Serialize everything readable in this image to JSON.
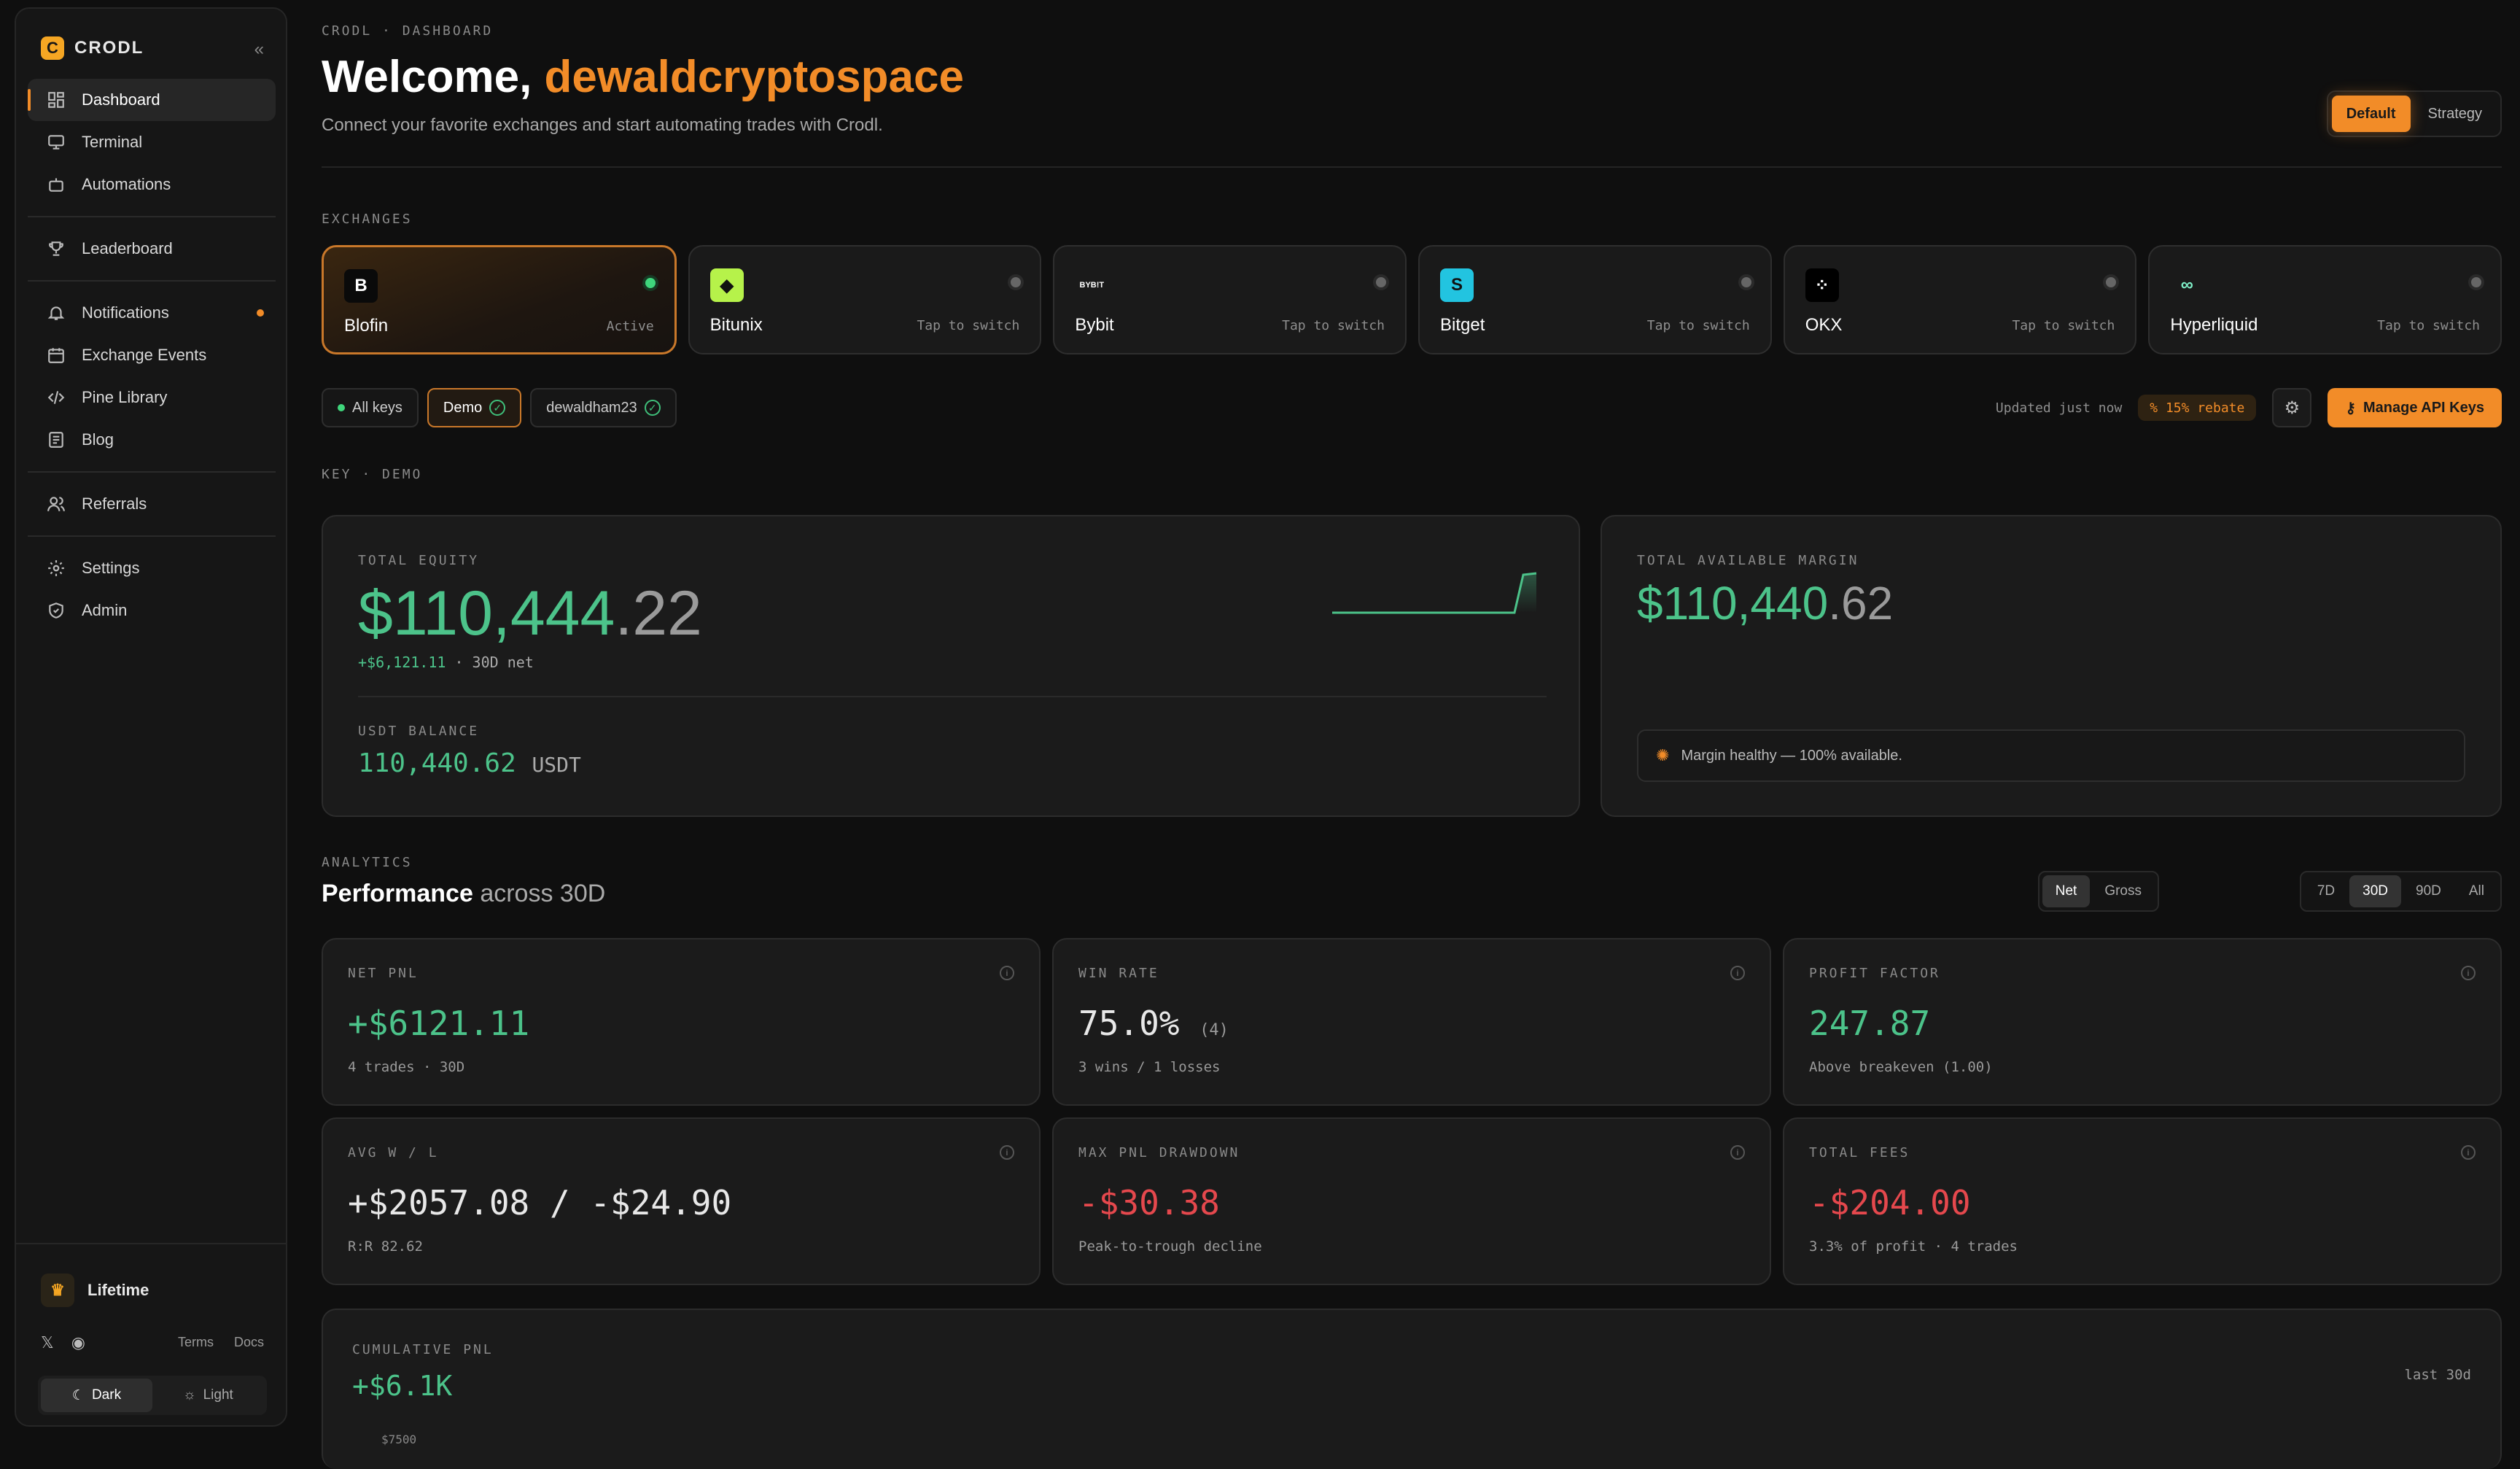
{
  "app": {
    "name": "CRODL"
  },
  "sidebar": {
    "collapse_icon": "«",
    "items": [
      {
        "label": "Dashboard",
        "icon": "grid-icon"
      },
      {
        "label": "Terminal",
        "icon": "monitor-icon"
      },
      {
        "label": "Automations",
        "icon": "robot-icon"
      },
      {
        "label": "Leaderboard",
        "icon": "trophy-icon"
      },
      {
        "label": "Notifications",
        "icon": "bell-icon"
      },
      {
        "label": "Exchange Events",
        "icon": "calendar-icon"
      },
      {
        "label": "Pine Library",
        "icon": "code-icon"
      },
      {
        "label": "Blog",
        "icon": "newspaper-icon"
      },
      {
        "label": "Referrals",
        "icon": "users-icon"
      },
      {
        "label": "Settings",
        "icon": "gear-icon"
      },
      {
        "label": "Admin",
        "icon": "shield-icon"
      }
    ],
    "plan": "Lifetime",
    "links": {
      "terms": "Terms",
      "docs": "Docs"
    },
    "theme": {
      "dark": "Dark",
      "light": "Light",
      "selected": "Dark"
    }
  },
  "header": {
    "breadcrumb": "CRODL · DASHBOARD",
    "welcome": "Welcome,",
    "username": "dewaldcryptospace",
    "subtitle": "Connect your favorite exchanges and start automating trades with Crodl.",
    "mode": {
      "default": "Default",
      "strategy": "Strategy",
      "selected": "Default"
    }
  },
  "exchanges": {
    "label": "EXCHANGES",
    "items": [
      {
        "name": "Blofin",
        "status": "Active",
        "glyph": "B",
        "color": "#0a0a0a"
      },
      {
        "name": "Bitunix",
        "status": "Tap to switch",
        "glyph": "◆",
        "color": "#b6f24a"
      },
      {
        "name": "Bybit",
        "status": "Tap to switch",
        "glyph": "BYB!T",
        "color": "#1a1a1a"
      },
      {
        "name": "Bitget",
        "status": "Tap to switch",
        "glyph": "S",
        "color": "#22c4e0"
      },
      {
        "name": "OKX",
        "status": "Tap to switch",
        "glyph": "⁘",
        "color": "#000000"
      },
      {
        "name": "Hyperliquid",
        "status": "Tap to switch",
        "glyph": "∞",
        "color": "#1a1a1a"
      }
    ]
  },
  "keys": {
    "all": "All keys",
    "demo": "Demo",
    "user_key": "dewaldham23",
    "updated": "Updated just now",
    "rebate": "% 15% rebate",
    "manage": "Manage API Keys"
  },
  "key_section": {
    "label": "KEY · DEMO"
  },
  "equity": {
    "label": "TOTAL EQUITY",
    "main": "$110,444",
    "cents": ".22",
    "delta": "+$6,121.11",
    "delta_suffix": "· 30D net",
    "usdt_label": "USDT BALANCE",
    "usdt_value": "110,440.62",
    "usdt_unit": "USDT"
  },
  "margin": {
    "label": "TOTAL AVAILABLE MARGIN",
    "main": "$110,440",
    "cents": ".62",
    "note": "Margin healthy — 100% available."
  },
  "analytics": {
    "label": "ANALYTICS",
    "title_strong": "Performance",
    "title_rest": "across 30D",
    "mode": [
      "Net",
      "Gross"
    ],
    "mode_selected": "Net",
    "ranges": [
      "7D",
      "30D",
      "90D",
      "All"
    ],
    "range_selected": "30D",
    "stats": [
      {
        "label": "NET PNL",
        "value": "+$6121.11",
        "extra": "",
        "sub": "4 trades · 30D",
        "tone": "green"
      },
      {
        "label": "WIN RATE",
        "value": "75.0%",
        "extra": "(4)",
        "sub": "3 wins / 1 losses",
        "tone": "white"
      },
      {
        "label": "PROFIT FACTOR",
        "value": "247.87",
        "extra": "",
        "sub": "Above breakeven (1.00)",
        "tone": "green"
      },
      {
        "label": "AVG W / L",
        "value": "+$2057.08 / -$24.90",
        "extra": "",
        "sub": "R:R 82.62",
        "tone": "white"
      },
      {
        "label": "MAX PNL DRAWDOWN",
        "value": "-$30.38",
        "extra": "",
        "sub": "Peak-to-trough decline",
        "tone": "red"
      },
      {
        "label": "TOTAL FEES",
        "value": "-$204.00",
        "extra": "",
        "sub": "3.3% of profit · 4 trades",
        "tone": "red"
      }
    ]
  },
  "cumulative": {
    "label": "CUMULATIVE PNL",
    "value": "+$6.1K",
    "range": "last 30d",
    "first_tick": "$7500"
  }
}
